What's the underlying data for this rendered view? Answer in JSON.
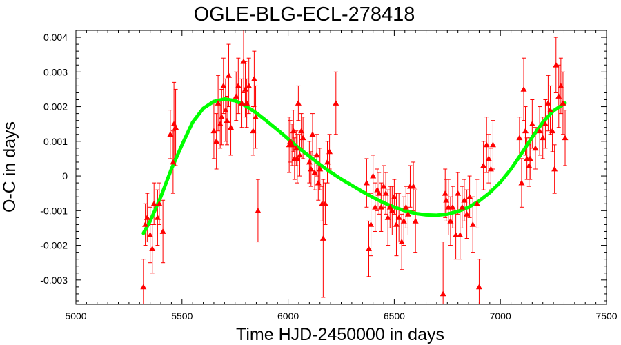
{
  "chart_data": {
    "type": "scatter",
    "title": "OGLE-BLG-ECL-278418",
    "xlabel": "Time HJD-2450000 in days",
    "ylabel": "O-C in days",
    "xlim": [
      5000,
      7500
    ],
    "ylim": [
      -0.0037,
      0.0042
    ],
    "xticks": [
      5000,
      5500,
      6000,
      6500,
      7000,
      7500
    ],
    "xtick_labels": [
      "5000",
      "5500",
      "6000",
      "6500",
      "7000",
      "7500"
    ],
    "yticks": [
      -0.003,
      -0.002,
      -0.001,
      0,
      0.001,
      0.002,
      0.003,
      0.004
    ],
    "ytick_labels": [
      "-0.003",
      "-0.002",
      "-0.001",
      "0",
      "0.001",
      "0.002",
      "0.003",
      "0.004"
    ],
    "grid": false,
    "colors": {
      "points": "#ff0000",
      "fit": "#00ff00",
      "axes": "#000000"
    },
    "series": [
      {
        "marker": "triangle",
        "points": [
          {
            "x": 5318,
            "y": -0.0032,
            "err": 0.0008
          },
          {
            "x": 5327,
            "y": -0.0014,
            "err": 0.0006
          },
          {
            "x": 5336,
            "y": -0.0012,
            "err": 0.0007
          },
          {
            "x": 5350,
            "y": -0.0017,
            "err": 0.0008
          },
          {
            "x": 5360,
            "y": -0.0021,
            "err": 0.0007
          },
          {
            "x": 5368,
            "y": -0.0008,
            "err": 0.0006
          },
          {
            "x": 5385,
            "y": -0.0012,
            "err": 0.0008
          },
          {
            "x": 5393,
            "y": -0.0008,
            "err": 0.0006
          },
          {
            "x": 5410,
            "y": -0.0016,
            "err": 0.0009
          },
          {
            "x": 5445,
            "y": 0.0012,
            "err": 0.0007
          },
          {
            "x": 5458,
            "y": 0.0004,
            "err": 0.0009
          },
          {
            "x": 5462,
            "y": 0.0015,
            "err": 0.0012
          },
          {
            "x": 5470,
            "y": 0.0014,
            "err": 0.0011
          },
          {
            "x": 5650,
            "y": 0.0013,
            "err": 0.0008
          },
          {
            "x": 5662,
            "y": 0.001,
            "err": 0.0008
          },
          {
            "x": 5670,
            "y": 0.0021,
            "err": 0.0008
          },
          {
            "x": 5680,
            "y": 0.0015,
            "err": 0.0007
          },
          {
            "x": 5687,
            "y": 0.0017,
            "err": 0.0008
          },
          {
            "x": 5695,
            "y": 0.0026,
            "err": 0.0008
          },
          {
            "x": 5705,
            "y": 0.0019,
            "err": 0.0009
          },
          {
            "x": 5712,
            "y": 0.0016,
            "err": 0.0007
          },
          {
            "x": 5720,
            "y": 0.0029,
            "err": 0.0009
          },
          {
            "x": 5730,
            "y": 0.0014,
            "err": 0.0008
          },
          {
            "x": 5755,
            "y": 0.0023,
            "err": 0.0007
          },
          {
            "x": 5765,
            "y": 0.0026,
            "err": 0.0008
          },
          {
            "x": 5782,
            "y": 0.0021,
            "err": 0.0007
          },
          {
            "x": 5790,
            "y": 0.0033,
            "err": 0.0009
          },
          {
            "x": 5798,
            "y": 0.0025,
            "err": 0.0008
          },
          {
            "x": 5805,
            "y": 0.0021,
            "err": 0.0007
          },
          {
            "x": 5815,
            "y": 0.0026,
            "err": 0.0008
          },
          {
            "x": 5835,
            "y": 0.0013,
            "err": 0.0007
          },
          {
            "x": 5840,
            "y": 0.0028,
            "err": 0.0008
          },
          {
            "x": 5847,
            "y": 0.0017,
            "err": 0.0009
          },
          {
            "x": 5858,
            "y": -0.001,
            "err": 0.0009
          },
          {
            "x": 6005,
            "y": 0.0009,
            "err": 0.0008
          },
          {
            "x": 6010,
            "y": 0.001,
            "err": 0.0006
          },
          {
            "x": 6018,
            "y": 0.0009,
            "err": 0.0006
          },
          {
            "x": 6025,
            "y": 0.0013,
            "err": 0.0006
          },
          {
            "x": 6030,
            "y": 0.0005,
            "err": 0.0006
          },
          {
            "x": 6038,
            "y": 0.0008,
            "err": 0.0005
          },
          {
            "x": 6043,
            "y": 0.0005,
            "err": 0.0007
          },
          {
            "x": 6048,
            "y": 0.0021,
            "err": 0.0005
          },
          {
            "x": 6055,
            "y": 0.0006,
            "err": 0.0006
          },
          {
            "x": 6062,
            "y": 0.0013,
            "err": 0.0005
          },
          {
            "x": 6070,
            "y": 0.0011,
            "err": 0.0006
          },
          {
            "x": 6100,
            "y": 0.0004,
            "err": 0.0006
          },
          {
            "x": 6108,
            "y": 0.0002,
            "err": 0.0005
          },
          {
            "x": 6115,
            "y": 0.0012,
            "err": 0.0006
          },
          {
            "x": 6125,
            "y": 0.0001,
            "err": 0.0005
          },
          {
            "x": 6135,
            "y": 0.0006,
            "err": 0.0006
          },
          {
            "x": 6142,
            "y": -0.0002,
            "err": 0.0005
          },
          {
            "x": 6150,
            "y": 0.0002,
            "err": 0.0006
          },
          {
            "x": 6160,
            "y": -0.0008,
            "err": 0.0005
          },
          {
            "x": 6165,
            "y": -0.0018,
            "err": 0.0017
          },
          {
            "x": 6175,
            "y": -0.0008,
            "err": 0.0006
          },
          {
            "x": 6185,
            "y": 0.0004,
            "err": 0.0006
          },
          {
            "x": 6195,
            "y": 0.0007,
            "err": 0.0005
          },
          {
            "x": 6225,
            "y": 0.0021,
            "err": 0.0009
          },
          {
            "x": 6370,
            "y": -0.0002,
            "err": 0.0007
          },
          {
            "x": 6380,
            "y": -0.0021,
            "err": 0.0008
          },
          {
            "x": 6390,
            "y": -0.0014,
            "err": 0.0009
          },
          {
            "x": 6400,
            "y": 0,
            "err": 0.0006
          },
          {
            "x": 6410,
            "y": -0.0009,
            "err": 0.0007
          },
          {
            "x": 6420,
            "y": -0.0004,
            "err": 0.0006
          },
          {
            "x": 6428,
            "y": -0.0005,
            "err": 0.0006
          },
          {
            "x": 6438,
            "y": -0.0009,
            "err": 0.0007
          },
          {
            "x": 6450,
            "y": -0.0003,
            "err": 0.0006
          },
          {
            "x": 6460,
            "y": -0.0005,
            "err": 0.0006
          },
          {
            "x": 6470,
            "y": -0.0012,
            "err": 0.0008
          },
          {
            "x": 6480,
            "y": -0.0009,
            "err": 0.0006
          },
          {
            "x": 6490,
            "y": -0.001,
            "err": 0.0007
          },
          {
            "x": 6500,
            "y": -0.0006,
            "err": 0.0005
          },
          {
            "x": 6510,
            "y": -0.0014,
            "err": 0.0009
          },
          {
            "x": 6522,
            "y": -0.0012,
            "err": 0.0007
          },
          {
            "x": 6535,
            "y": -0.0019,
            "err": 0.0008
          },
          {
            "x": 6545,
            "y": -0.0013,
            "err": 0.0007
          },
          {
            "x": 6555,
            "y": -0.0009,
            "err": 0.0006
          },
          {
            "x": 6565,
            "y": -0.0011,
            "err": 0.0006
          },
          {
            "x": 6575,
            "y": -0.0003,
            "err": 0.0006
          },
          {
            "x": 6590,
            "y": -0.0003,
            "err": 0.0007
          },
          {
            "x": 6600,
            "y": -0.0013,
            "err": 0.0009
          },
          {
            "x": 6730,
            "y": -0.0034,
            "err": 0.0015
          },
          {
            "x": 6740,
            "y": -0.0005,
            "err": 0.0007
          },
          {
            "x": 6745,
            "y": -0.0007,
            "err": 0.0006
          },
          {
            "x": 6755,
            "y": -0.0009,
            "err": 0.0008
          },
          {
            "x": 6765,
            "y": -0.0013,
            "err": 0.0007
          },
          {
            "x": 6775,
            "y": -0.0009,
            "err": 0.0006
          },
          {
            "x": 6790,
            "y": -0.0017,
            "err": 0.0007
          },
          {
            "x": 6800,
            "y": -0.0005,
            "err": 0.0006
          },
          {
            "x": 6810,
            "y": -0.0017,
            "err": 0.0007
          },
          {
            "x": 6820,
            "y": -0.0009,
            "err": 0.0006
          },
          {
            "x": 6830,
            "y": -0.0007,
            "err": 0.0006
          },
          {
            "x": 6842,
            "y": -0.0011,
            "err": 0.0007
          },
          {
            "x": 6855,
            "y": -0.0006,
            "err": 0.0006
          },
          {
            "x": 6870,
            "y": -0.0014,
            "err": 0.0008
          },
          {
            "x": 6890,
            "y": -0.0008,
            "err": 0.0007
          },
          {
            "x": 6900,
            "y": -0.0032,
            "err": 0.0008
          },
          {
            "x": 6920,
            "y": 0.0003,
            "err": 0.0007
          },
          {
            "x": 6935,
            "y": 0.0009,
            "err": 0.0008
          },
          {
            "x": 6945,
            "y": 0.0005,
            "err": 0.0007
          },
          {
            "x": 6955,
            "y": 0.0002,
            "err": 0.0006
          },
          {
            "x": 6965,
            "y": 0.0009,
            "err": 0.0007
          },
          {
            "x": 7090,
            "y": 0.0011,
            "err": 0.0006
          },
          {
            "x": 7100,
            "y": -0.0002,
            "err": 0.0007
          },
          {
            "x": 7110,
            "y": 0.0025,
            "err": 0.0009
          },
          {
            "x": 7118,
            "y": 0.0013,
            "err": 0.0007
          },
          {
            "x": 7125,
            "y": 0.0005,
            "err": 0.0006
          },
          {
            "x": 7135,
            "y": 0.0003,
            "err": 0.0006
          },
          {
            "x": 7140,
            "y": 0.0005,
            "err": 0.0006
          },
          {
            "x": 7150,
            "y": 0.0015,
            "err": 0.0007
          },
          {
            "x": 7165,
            "y": 0.0008,
            "err": 0.0006
          },
          {
            "x": 7185,
            "y": 0.0013,
            "err": 0.0007
          },
          {
            "x": 7200,
            "y": 0.0011,
            "err": 0.0006
          },
          {
            "x": 7212,
            "y": 0.0015,
            "err": 0.0007
          },
          {
            "x": 7225,
            "y": 0.0021,
            "err": 0.0008
          },
          {
            "x": 7235,
            "y": 0.0019,
            "err": 0.0007
          },
          {
            "x": 7245,
            "y": 0.0013,
            "err": 0.0006
          },
          {
            "x": 7255,
            "y": 0.0002,
            "err": 0.0007
          },
          {
            "x": 7262,
            "y": 0.0032,
            "err": 0.0008
          },
          {
            "x": 7275,
            "y": 0.0023,
            "err": 0.0009
          },
          {
            "x": 7285,
            "y": 0.0026,
            "err": 0.0008
          },
          {
            "x": 7295,
            "y": 0.0021,
            "err": 0.0009
          },
          {
            "x": 7305,
            "y": 0.0011,
            "err": 0.0008
          }
        ]
      },
      {
        "style": "curve",
        "points": [
          {
            "x": 5318,
            "y": -0.00165
          },
          {
            "x": 5350,
            "y": -0.0013
          },
          {
            "x": 5400,
            "y": -0.0006
          },
          {
            "x": 5450,
            "y": 0.0002
          },
          {
            "x": 5500,
            "y": 0.0009
          },
          {
            "x": 5550,
            "y": 0.00155
          },
          {
            "x": 5600,
            "y": 0.00195
          },
          {
            "x": 5650,
            "y": 0.00215
          },
          {
            "x": 5700,
            "y": 0.00222
          },
          {
            "x": 5750,
            "y": 0.00217
          },
          {
            "x": 5800,
            "y": 0.00202
          },
          {
            "x": 5850,
            "y": 0.00182
          },
          {
            "x": 5900,
            "y": 0.00158
          },
          {
            "x": 5950,
            "y": 0.00133
          },
          {
            "x": 6000,
            "y": 0.00107
          },
          {
            "x": 6050,
            "y": 0.00081
          },
          {
            "x": 6100,
            "y": 0.00057
          },
          {
            "x": 6150,
            "y": 0.00033
          },
          {
            "x": 6200,
            "y": 0.00011
          },
          {
            "x": 6250,
            "y": -9e-05
          },
          {
            "x": 6300,
            "y": -0.00027
          },
          {
            "x": 6350,
            "y": -0.00045
          },
          {
            "x": 6400,
            "y": -0.00062
          },
          {
            "x": 6450,
            "y": -0.00077
          },
          {
            "x": 6500,
            "y": -0.0009
          },
          {
            "x": 6550,
            "y": -0.001
          },
          {
            "x": 6600,
            "y": -0.00108
          },
          {
            "x": 6650,
            "y": -0.00112
          },
          {
            "x": 6700,
            "y": -0.00113
          },
          {
            "x": 6750,
            "y": -0.0011
          },
          {
            "x": 6800,
            "y": -0.00102
          },
          {
            "x": 6850,
            "y": -0.0009
          },
          {
            "x": 6900,
            "y": -0.00072
          },
          {
            "x": 6950,
            "y": -0.00048
          },
          {
            "x": 7000,
            "y": -0.00018
          },
          {
            "x": 7050,
            "y": 0.0002
          },
          {
            "x": 7100,
            "y": 0.00065
          },
          {
            "x": 7150,
            "y": 0.00112
          },
          {
            "x": 7200,
            "y": 0.00155
          },
          {
            "x": 7250,
            "y": 0.00188
          },
          {
            "x": 7305,
            "y": 0.0021
          }
        ]
      }
    ]
  }
}
